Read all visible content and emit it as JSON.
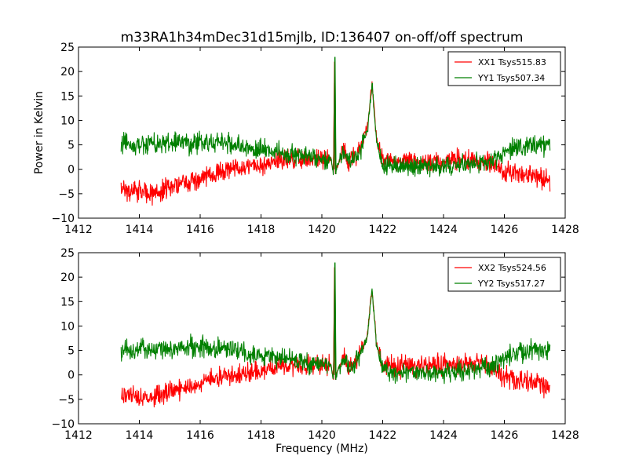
{
  "figure": {
    "title": "m33RA1h34mDec31d15mjlb, ID:136407 on-off/off spectrum",
    "xlabel": "Frequency (MHz)",
    "ylabel": "Power in Kelvin"
  },
  "chart_data": [
    {
      "type": "line",
      "title": "m33RA1h34mDec31d15mjlb, ID:136407 on-off/off spectrum",
      "xlabel": "",
      "ylabel": "Power in Kelvin",
      "xlim": [
        1412,
        1428
      ],
      "ylim": [
        -10,
        25
      ],
      "xticks": [
        "1412",
        "1414",
        "1416",
        "1418",
        "1420",
        "1422",
        "1424",
        "1426",
        "1428"
      ],
      "yticks": [
        "25",
        "20",
        "15",
        "10",
        "5",
        "0",
        "−5",
        "−10"
      ],
      "grid": false,
      "legend_position": "top-right",
      "series": [
        {
          "name": "XX1 Tsys515.83",
          "color": "#ff0000",
          "x": [
            1413.4,
            1414.0,
            1414.5,
            1415.0,
            1415.5,
            1416.0,
            1416.5,
            1417.0,
            1417.5,
            1418.0,
            1418.5,
            1419.0,
            1419.5,
            1420.0,
            1420.3,
            1420.38,
            1420.42,
            1420.45,
            1420.5,
            1420.7,
            1420.9,
            1421.2,
            1421.5,
            1421.65,
            1421.8,
            1422.0,
            1422.5,
            1423.0,
            1423.5,
            1424.0,
            1424.5,
            1425.0,
            1425.5,
            1426.0,
            1426.5,
            1427.0,
            1427.5
          ],
          "y": [
            -4.0,
            -4.5,
            -5.0,
            -3.5,
            -3.0,
            -2.0,
            -0.5,
            0.0,
            0.5,
            1.0,
            1.5,
            2.0,
            2.0,
            2.0,
            2.0,
            -1.0,
            22.0,
            0.0,
            0.5,
            4.0,
            1.5,
            3.5,
            8.5,
            17.5,
            6.0,
            2.0,
            1.5,
            1.5,
            1.5,
            1.5,
            2.0,
            2.0,
            2.0,
            -0.5,
            -1.0,
            -1.5,
            -2.5
          ]
        },
        {
          "name": "YY1 Tsys507.34",
          "color": "#008000",
          "x": [
            1413.4,
            1414.0,
            1414.5,
            1415.0,
            1415.5,
            1416.0,
            1416.5,
            1417.0,
            1417.5,
            1418.0,
            1418.5,
            1419.0,
            1419.5,
            1420.0,
            1420.3,
            1420.38,
            1420.43,
            1420.46,
            1420.5,
            1420.7,
            1420.9,
            1421.2,
            1421.5,
            1421.65,
            1421.8,
            1422.0,
            1422.5,
            1423.0,
            1423.5,
            1424.0,
            1424.5,
            1425.0,
            1425.5,
            1426.0,
            1426.5,
            1427.0,
            1427.5
          ],
          "y": [
            5.0,
            5.0,
            5.0,
            5.5,
            5.5,
            5.5,
            5.5,
            5.5,
            4.5,
            4.0,
            3.5,
            3.0,
            2.5,
            2.0,
            2.0,
            -1.0,
            23.0,
            -0.5,
            0.5,
            3.5,
            1.5,
            3.0,
            8.0,
            17.5,
            6.0,
            1.0,
            0.5,
            0.5,
            0.5,
            0.5,
            1.0,
            1.0,
            1.5,
            3.5,
            4.5,
            5.0,
            5.0
          ]
        }
      ]
    },
    {
      "type": "line",
      "title": "",
      "xlabel": "Frequency (MHz)",
      "ylabel": "",
      "xlim": [
        1412,
        1428
      ],
      "ylim": [
        -10,
        25
      ],
      "xticks": [
        "1412",
        "1414",
        "1416",
        "1418",
        "1420",
        "1422",
        "1424",
        "1426",
        "1428"
      ],
      "yticks": [
        "25",
        "20",
        "15",
        "10",
        "5",
        "0",
        "−5",
        "−10"
      ],
      "grid": false,
      "legend_position": "top-right",
      "series": [
        {
          "name": "XX2 Tsys524.56",
          "color": "#ff0000",
          "x": [
            1413.4,
            1414.0,
            1414.5,
            1415.0,
            1415.5,
            1416.0,
            1416.5,
            1417.0,
            1417.5,
            1418.0,
            1418.5,
            1419.0,
            1419.5,
            1420.0,
            1420.3,
            1420.38,
            1420.42,
            1420.45,
            1420.5,
            1420.7,
            1420.9,
            1421.2,
            1421.5,
            1421.65,
            1421.8,
            1422.0,
            1422.5,
            1423.0,
            1423.5,
            1424.0,
            1424.5,
            1425.0,
            1425.5,
            1426.0,
            1426.5,
            1427.0,
            1427.5
          ],
          "y": [
            -4.0,
            -4.5,
            -4.5,
            -3.5,
            -2.5,
            -2.0,
            -0.5,
            0.0,
            0.5,
            1.0,
            1.5,
            2.0,
            2.0,
            2.0,
            2.0,
            -1.0,
            22.0,
            0.0,
            0.5,
            4.0,
            1.5,
            3.5,
            8.5,
            17.5,
            6.0,
            2.0,
            2.0,
            2.0,
            2.0,
            2.0,
            2.0,
            2.5,
            2.0,
            -0.5,
            -1.0,
            -1.5,
            -2.5
          ]
        },
        {
          "name": "YY2 Tsys517.27",
          "color": "#008000",
          "x": [
            1413.4,
            1414.0,
            1414.5,
            1415.0,
            1415.5,
            1416.0,
            1416.5,
            1417.0,
            1417.5,
            1418.0,
            1418.5,
            1419.0,
            1419.5,
            1420.0,
            1420.3,
            1420.38,
            1420.43,
            1420.46,
            1420.5,
            1420.7,
            1420.9,
            1421.2,
            1421.5,
            1421.65,
            1421.8,
            1422.0,
            1422.5,
            1423.0,
            1423.5,
            1424.0,
            1424.5,
            1425.0,
            1425.5,
            1426.0,
            1426.5,
            1427.0,
            1427.5
          ],
          "y": [
            5.0,
            5.5,
            5.0,
            5.5,
            5.5,
            6.0,
            5.5,
            5.5,
            4.5,
            4.0,
            3.5,
            3.0,
            2.5,
            2.0,
            2.0,
            -1.0,
            23.0,
            -0.5,
            0.5,
            3.5,
            1.5,
            3.0,
            8.0,
            17.5,
            6.0,
            1.0,
            0.5,
            0.5,
            0.5,
            0.5,
            1.0,
            1.0,
            1.5,
            3.5,
            4.5,
            5.0,
            5.0
          ]
        }
      ]
    }
  ]
}
